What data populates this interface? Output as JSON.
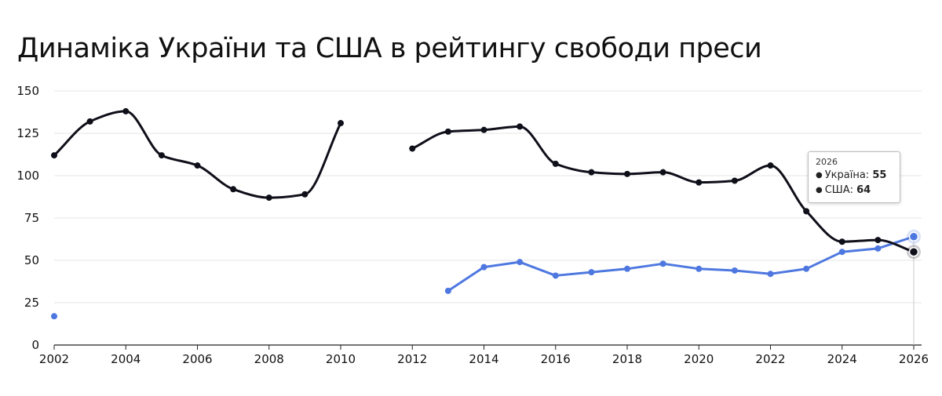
{
  "title": "Динаміка України та США в рейтингу свободи преси",
  "chart_data": {
    "type": "line",
    "title": "Динаміка України та США в рейтингу свободи преси",
    "xlabel": "",
    "ylabel": "",
    "xlim": [
      2002,
      2026
    ],
    "ylim": [
      0,
      150
    ],
    "x_ticks": [
      "2002",
      "2004",
      "2006",
      "2008",
      "2010",
      "2012",
      "2014",
      "2016",
      "2018",
      "2020",
      "2022",
      "2024",
      "2026"
    ],
    "y_ticks": [
      "0",
      "25",
      "50",
      "75",
      "100",
      "125",
      "150"
    ],
    "grid": "horizontal",
    "series": [
      {
        "name": "Україна",
        "color": "#0f0f1a",
        "smooth": true,
        "x": [
          2002,
          2003,
          2004,
          2005,
          2006,
          2007,
          2008,
          2009,
          2010,
          2012,
          2013,
          2014,
          2015,
          2016,
          2017,
          2018,
          2019,
          2020,
          2021,
          2022,
          2023,
          2024,
          2025,
          2026
        ],
        "y": [
          112,
          132,
          138,
          112,
          106,
          92,
          87,
          89,
          131,
          116,
          126,
          127,
          129,
          107,
          102,
          101,
          102,
          96,
          97,
          106,
          79,
          61,
          62,
          55
        ]
      },
      {
        "name": "США",
        "color": "#4e78e0",
        "smooth": false,
        "x": [
          2002,
          2013,
          2014,
          2015,
          2016,
          2017,
          2018,
          2019,
          2020,
          2021,
          2022,
          2023,
          2024,
          2025,
          2026
        ],
        "y": [
          17,
          32,
          46,
          49,
          41,
          43,
          45,
          48,
          45,
          44,
          42,
          45,
          55,
          57,
          64
        ]
      }
    ],
    "tooltip": {
      "year": "2026",
      "rows": [
        {
          "label": "Україна:",
          "value": "55",
          "color": "#0f0f1a"
        },
        {
          "label": "США:",
          "value": "64",
          "color": "#4e78e0"
        }
      ]
    }
  }
}
